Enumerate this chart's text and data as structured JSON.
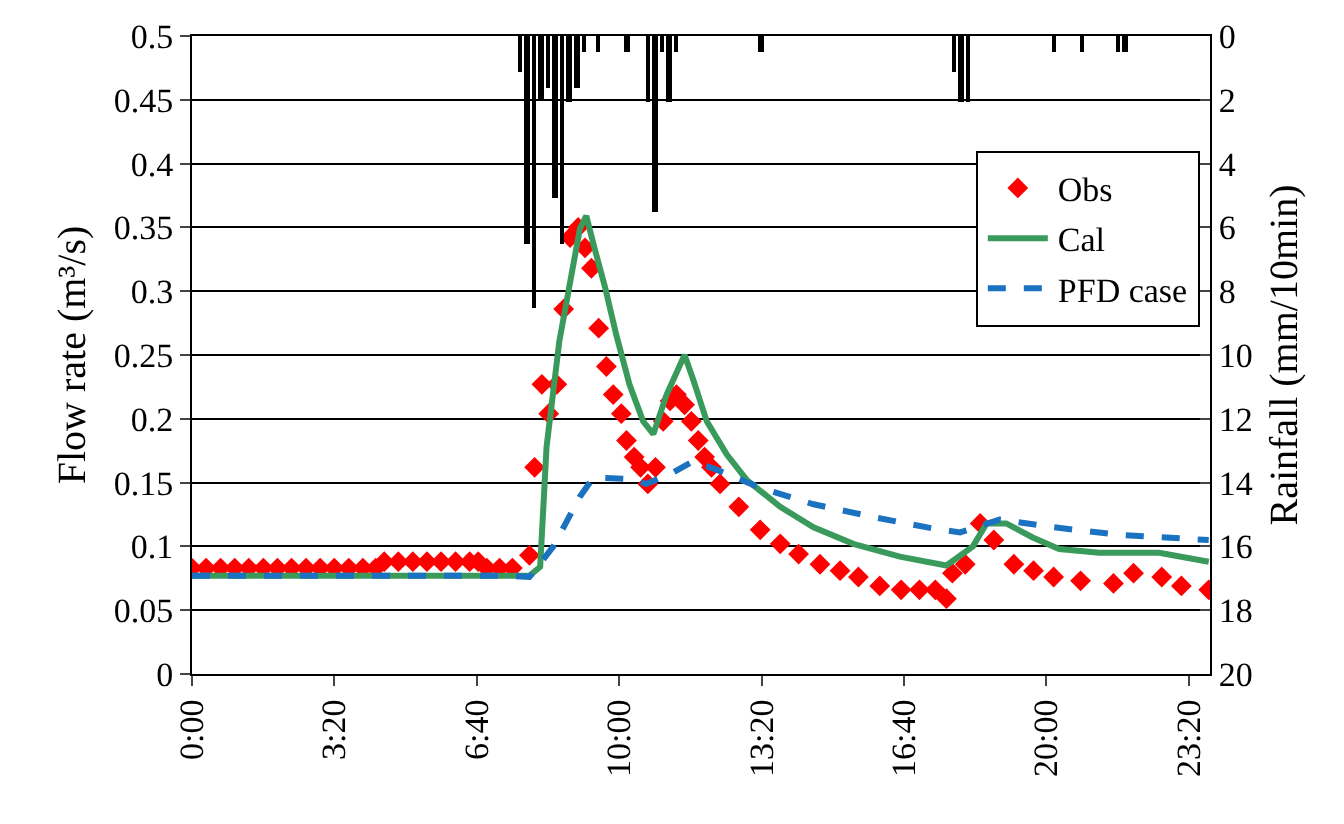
{
  "chart_data": {
    "type": "line",
    "ylabel": "Flow rate (m³/s)",
    "y2label": "Rainfall (mm/10min)",
    "xlim": [
      0,
      23.83
    ],
    "xticks": [
      {
        "value": 0,
        "label": "0:00"
      },
      {
        "value": 3.333,
        "label": "3:20"
      },
      {
        "value": 6.667,
        "label": "6:40"
      },
      {
        "value": 10,
        "label": "10:00"
      },
      {
        "value": 13.333,
        "label": "13:20"
      },
      {
        "value": 16.667,
        "label": "16:40"
      },
      {
        "value": 20,
        "label": "20:00"
      },
      {
        "value": 23.333,
        "label": "23:20"
      }
    ],
    "ylim": [
      0,
      0.5
    ],
    "yticks": [
      0,
      0.05,
      0.1,
      0.15,
      0.2,
      0.25,
      0.3,
      0.35,
      0.4,
      0.45,
      0.5
    ],
    "y2lim": [
      20,
      0
    ],
    "y2ticks": [
      0,
      2,
      4,
      6,
      8,
      10,
      12,
      14,
      16,
      18,
      20
    ],
    "grid": "y",
    "legend": "right",
    "series": [
      {
        "type": "bar",
        "axis": "y2",
        "color": "#000000",
        "x": [
          7.67,
          7.83,
          8.0,
          8.17,
          8.33,
          8.5,
          8.67,
          8.83,
          9.0,
          9.17,
          9.5,
          10.17,
          10.67,
          10.83,
          11.0,
          11.17,
          11.33,
          13.33,
          17.83,
          18.0,
          18.17,
          20.17,
          20.83,
          21.67,
          21.83
        ],
        "values": [
          1.1,
          6.5,
          8.5,
          2.0,
          1.6,
          5.1,
          6.5,
          2.1,
          1.6,
          0.5,
          0.5,
          0.5,
          2.1,
          5.5,
          0.5,
          2.1,
          0.5,
          0.5,
          1.1,
          2.1,
          2.1,
          0.5,
          0.5,
          0.5,
          0.5
        ]
      },
      {
        "type": "scatter",
        "name": "Obs",
        "color": "#ff0000",
        "marker": "diamond",
        "x": [
          0,
          0.33,
          0.67,
          1.0,
          1.33,
          1.67,
          2.0,
          2.33,
          2.67,
          3.0,
          3.33,
          3.67,
          4.0,
          4.3,
          4.5,
          4.83,
          5.17,
          5.5,
          5.83,
          6.17,
          6.5,
          6.7,
          6.9,
          7.2,
          7.5,
          7.9,
          8.02,
          8.19,
          8.35,
          8.54,
          8.7,
          8.85,
          9.04,
          9.2,
          9.35,
          9.52,
          9.7,
          9.86,
          10.05,
          10.17,
          10.35,
          10.5,
          10.67,
          10.85,
          11.03,
          11.19,
          11.34,
          11.53,
          11.69,
          11.85,
          12.0,
          12.16,
          12.36,
          12.8,
          13.3,
          13.77,
          14.2,
          14.7,
          15.17,
          15.6,
          16.1,
          16.6,
          17.03,
          17.4,
          17.66,
          17.8,
          18.1,
          18.45,
          18.77,
          19.24,
          19.7,
          20.17,
          20.8,
          21.57,
          22.04,
          22.7,
          23.16,
          23.8
        ],
        "values": [
          0.083,
          0.083,
          0.083,
          0.083,
          0.083,
          0.083,
          0.083,
          0.083,
          0.083,
          0.083,
          0.083,
          0.083,
          0.083,
          0.083,
          0.088,
          0.088,
          0.088,
          0.088,
          0.088,
          0.088,
          0.088,
          0.088,
          0.083,
          0.083,
          0.083,
          0.093,
          0.162,
          0.227,
          0.204,
          0.227,
          0.286,
          0.342,
          0.35,
          0.334,
          0.318,
          0.271,
          0.241,
          0.219,
          0.204,
          0.183,
          0.17,
          0.162,
          0.149,
          0.162,
          0.198,
          0.214,
          0.219,
          0.211,
          0.198,
          0.183,
          0.17,
          0.162,
          0.149,
          0.131,
          0.113,
          0.102,
          0.094,
          0.086,
          0.081,
          0.076,
          0.069,
          0.066,
          0.066,
          0.066,
          0.059,
          0.079,
          0.086,
          0.118,
          0.105,
          0.086,
          0.081,
          0.076,
          0.073,
          0.071,
          0.079,
          0.076,
          0.069,
          0.066
        ]
      },
      {
        "name": "Cal",
        "color": "#3a9a5c",
        "line_style": "solid",
        "x": [
          0,
          7.9,
          8.15,
          8.3,
          8.6,
          9.08,
          9.23,
          9.42,
          9.67,
          9.93,
          10.24,
          10.56,
          10.8,
          11.11,
          11.53,
          11.74,
          12.05,
          12.52,
          12.99,
          13.77,
          14.55,
          15.48,
          16.57,
          17.66,
          18.28,
          18.6,
          19.06,
          19.68,
          20.3,
          21.24,
          22.64,
          23.8
        ],
        "values": [
          0.077,
          0.077,
          0.084,
          0.178,
          0.261,
          0.349,
          0.359,
          0.334,
          0.303,
          0.266,
          0.227,
          0.198,
          0.188,
          0.219,
          0.25,
          0.23,
          0.198,
          0.172,
          0.152,
          0.131,
          0.115,
          0.102,
          0.092,
          0.085,
          0.1,
          0.118,
          0.118,
          0.107,
          0.098,
          0.095,
          0.095,
          0.088
        ]
      },
      {
        "name": "PFD case",
        "color": "#1a72c0",
        "line_style": "dashed",
        "x": [
          0,
          7.3,
          7.9,
          8.46,
          9.08,
          9.4,
          10.17,
          10.64,
          11.27,
          11.74,
          12.36,
          13.3,
          14.55,
          15.95,
          17.35,
          17.98,
          18.9,
          20.17,
          21.72,
          23.8
        ],
        "values": [
          0.077,
          0.077,
          0.076,
          0.1,
          0.139,
          0.154,
          0.153,
          0.149,
          0.158,
          0.167,
          0.159,
          0.146,
          0.133,
          0.123,
          0.114,
          0.111,
          0.121,
          0.115,
          0.109,
          0.105
        ]
      }
    ]
  }
}
